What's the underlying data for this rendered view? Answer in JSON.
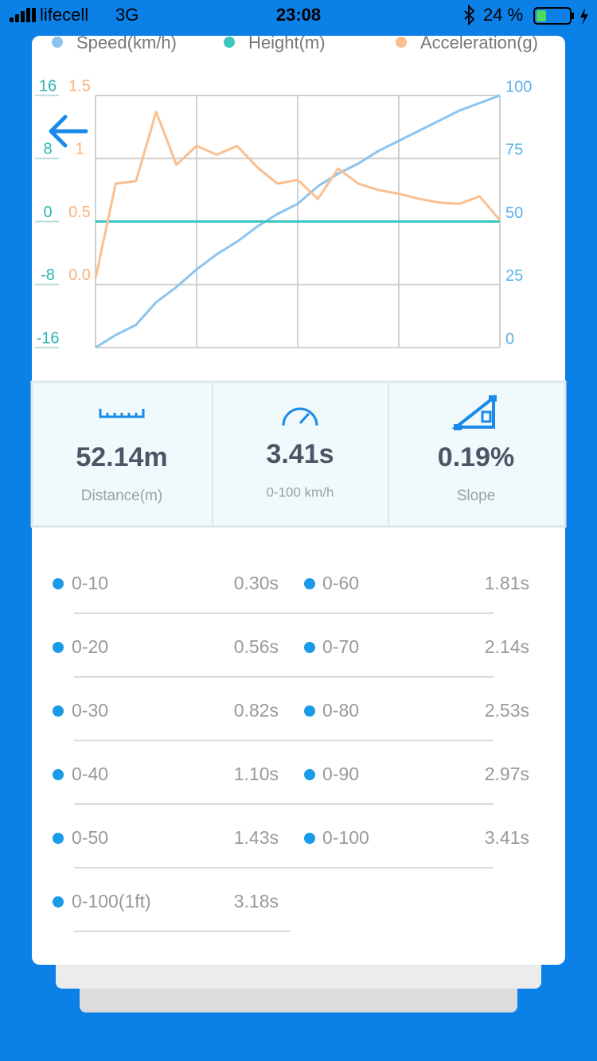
{
  "status_bar": {
    "carrier": "lifecell",
    "network": "3G",
    "time": "23:08",
    "battery": "24 %"
  },
  "chart_data": {
    "type": "line",
    "series": [
      {
        "name": "Speed(km/h)",
        "color": "#8cc4ee",
        "axis": "y2",
        "values": [
          0,
          5,
          9,
          18,
          24,
          31,
          37,
          42,
          48,
          53,
          57,
          64,
          69,
          73,
          78,
          82,
          86,
          90,
          94,
          97,
          100
        ]
      },
      {
        "name": "Height(m)",
        "color": "#3cc7c0",
        "axis": "y",
        "values": [
          0,
          0,
          0,
          0,
          0,
          0,
          0,
          0,
          0,
          0,
          0,
          0,
          0,
          0,
          0,
          0,
          0,
          0,
          0,
          0,
          0
        ]
      },
      {
        "name": "Acceleration(g)",
        "color": "#fbbf8f",
        "axis": "y3",
        "values": [
          0.05,
          0.8,
          0.82,
          1.37,
          0.95,
          1.1,
          1.03,
          1.1,
          0.93,
          0.8,
          0.83,
          0.68,
          0.92,
          0.8,
          0.75,
          0.72,
          0.68,
          0.65,
          0.64,
          0.7,
          0.51
        ]
      }
    ],
    "ylim": [
      -16,
      16
    ],
    "yticks": [
      -16,
      -8,
      0,
      8,
      16
    ],
    "y3lim": [
      -0.5,
      1.5
    ],
    "y3ticks": [
      {
        "value": 0,
        "label": "0.0"
      },
      0.5,
      1,
      1.5
    ],
    "y2lim": [
      0,
      100
    ],
    "y2ticks": [
      0,
      25,
      50,
      75,
      100
    ],
    "grid": true
  },
  "stats": [
    {
      "value": "52.14m",
      "label": "Distance(m)"
    },
    {
      "value": "3.41s",
      "label": "0-100 km/h"
    },
    {
      "value": "0.19%",
      "label": "Slope"
    }
  ],
  "splits": [
    [
      {
        "range": "0-10",
        "time": "0.30s"
      },
      {
        "range": "0-60",
        "time": "1.81s"
      }
    ],
    [
      {
        "range": "0-20",
        "time": "0.56s"
      },
      {
        "range": "0-70",
        "time": "2.14s"
      }
    ],
    [
      {
        "range": "0-30",
        "time": "0.82s"
      },
      {
        "range": "0-80",
        "time": "2.53s"
      }
    ],
    [
      {
        "range": "0-40",
        "time": "1.10s"
      },
      {
        "range": "0-90",
        "time": "2.97s"
      }
    ],
    [
      {
        "range": "0-50",
        "time": "1.43s"
      },
      {
        "range": "0-100",
        "time": "3.41s"
      }
    ],
    [
      {
        "range": "0-100(1ft)",
        "time": "3.18s"
      }
    ]
  ]
}
